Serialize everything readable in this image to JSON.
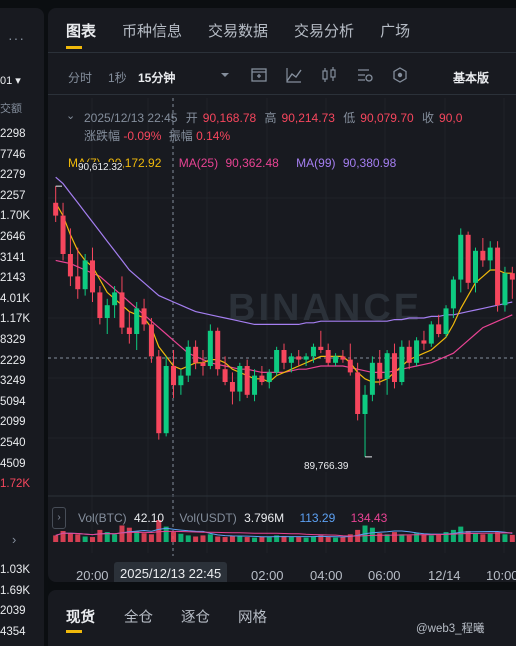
{
  "left_strip": {
    "menu_icon": "more-horizontal-icon",
    "selector": "01 ▾",
    "header": "交额",
    "values": [
      "2298",
      "7746",
      "2279",
      "2257",
      "1.70K",
      "2646",
      "3141",
      "2143",
      "4.01K",
      "1.17K",
      "8329",
      "2229",
      "3249",
      "5094",
      "2099",
      "2540",
      "4509",
      "1.72K"
    ],
    "lower_values": [
      "1.03K",
      "1.69K",
      "2039",
      "4354"
    ],
    "value_colors": [
      "#eaecef",
      "#eaecef",
      "#eaecef",
      "#eaecef",
      "#eaecef",
      "#eaecef",
      "#eaecef",
      "#eaecef",
      "#eaecef",
      "#eaecef",
      "#eaecef",
      "#eaecef",
      "#eaecef",
      "#eaecef",
      "#eaecef",
      "#eaecef",
      "#eaecef",
      "#f6465d"
    ]
  },
  "tabs": [
    "图表",
    "币种信息",
    "交易数据",
    "交易分析",
    "广场"
  ],
  "toolbar": {
    "time": "分时",
    "one_sec": "1秒",
    "interval": "15分钟",
    "basic": "基本版",
    "icons": [
      "dropdown-caret-icon",
      "indicator-add-icon",
      "chart-line-icon",
      "candle-style-icon",
      "magic-indicator-icon",
      "settings-hex-icon",
      "more-vertical-icon"
    ]
  },
  "ohlc": {
    "datetime": "2025/12/13 22:45",
    "open_label": "开",
    "open": "90,168.78",
    "high_label": "高",
    "high": "90,214.73",
    "low_label": "低",
    "low": "90,079.70",
    "close_label": "收",
    "close": "90,0",
    "change_label": "涨跌幅",
    "change": "-0.09%",
    "amplitude_label": "振幅",
    "amplitude": "0.14%"
  },
  "ma": {
    "ma7_label": "MA(7)",
    "ma7": "90,172.92",
    "ma25_label": "MA(25)",
    "ma25": "90,362.48",
    "ma99_label": "MA(99)",
    "ma99": "90,380.98"
  },
  "price_labels": {
    "high": "90,612.32",
    "low": "89,766.39"
  },
  "watermark_logo": "BINANCE",
  "volume": {
    "btc_label": "Vol(BTC)",
    "btc": "42.10",
    "usdt_label": "Vol(USDT)",
    "usdt": "3.796M",
    "ma1": "113.29",
    "ma2": "134.43"
  },
  "time_axis": [
    "20:00",
    "02:00",
    "04:00",
    "06:00",
    "12/14",
    "10:00"
  ],
  "crosshair_time": "2025/12/13 22:45",
  "bottom_tabs": [
    "现货",
    "全仓",
    "逐仓",
    "网格"
  ],
  "footer_watermark": "@web3_程曦",
  "colors": {
    "up": "#0ecb81",
    "down": "#f6465d",
    "ma7": "#f0b90b",
    "ma25": "#e84393",
    "ma99": "#a47ef0",
    "accent": "#f0b90b"
  },
  "chart_data": {
    "type": "candlestick",
    "interval": "15分钟",
    "y_range": [
      89700,
      90700
    ],
    "candles": [
      {
        "o": 90560,
        "h": 90612,
        "l": 90500,
        "c": 90520
      },
      {
        "o": 90520,
        "h": 90560,
        "l": 90380,
        "c": 90400
      },
      {
        "o": 90400,
        "h": 90480,
        "l": 90300,
        "c": 90330
      },
      {
        "o": 90330,
        "h": 90420,
        "l": 90260,
        "c": 90290
      },
      {
        "o": 90290,
        "h": 90400,
        "l": 90270,
        "c": 90380
      },
      {
        "o": 90380,
        "h": 90420,
        "l": 90250,
        "c": 90280
      },
      {
        "o": 90280,
        "h": 90300,
        "l": 90180,
        "c": 90200
      },
      {
        "o": 90200,
        "h": 90260,
        "l": 90150,
        "c": 90240
      },
      {
        "o": 90240,
        "h": 90300,
        "l": 90200,
        "c": 90280
      },
      {
        "o": 90280,
        "h": 90330,
        "l": 90150,
        "c": 90170
      },
      {
        "o": 90170,
        "h": 90220,
        "l": 90120,
        "c": 90150
      },
      {
        "o": 90150,
        "h": 90250,
        "l": 90100,
        "c": 90230
      },
      {
        "o": 90230,
        "h": 90260,
        "l": 90160,
        "c": 90180
      },
      {
        "o": 90180,
        "h": 90200,
        "l": 90060,
        "c": 90080
      },
      {
        "o": 90080,
        "h": 90100,
        "l": 89820,
        "c": 89840
      },
      {
        "o": 89840,
        "h": 90080,
        "l": 89830,
        "c": 90050
      },
      {
        "o": 90050,
        "h": 90100,
        "l": 89950,
        "c": 89990
      },
      {
        "o": 89990,
        "h": 90040,
        "l": 89960,
        "c": 90020
      },
      {
        "o": 90020,
        "h": 90130,
        "l": 90000,
        "c": 90110
      },
      {
        "o": 90110,
        "h": 90130,
        "l": 90040,
        "c": 90060
      },
      {
        "o": 90060,
        "h": 90100,
        "l": 90020,
        "c": 90050
      },
      {
        "o": 90050,
        "h": 90180,
        "l": 90040,
        "c": 90160
      },
      {
        "o": 90160,
        "h": 90170,
        "l": 90020,
        "c": 90040
      },
      {
        "o": 90040,
        "h": 90080,
        "l": 89990,
        "c": 90000
      },
      {
        "o": 90000,
        "h": 90030,
        "l": 89930,
        "c": 89970
      },
      {
        "o": 89970,
        "h": 90060,
        "l": 89940,
        "c": 90050
      },
      {
        "o": 90050,
        "h": 90070,
        "l": 89950,
        "c": 89960
      },
      {
        "o": 89960,
        "h": 90040,
        "l": 89940,
        "c": 90020
      },
      {
        "o": 90020,
        "h": 90050,
        "l": 89990,
        "c": 90000
      },
      {
        "o": 90000,
        "h": 90040,
        "l": 89980,
        "c": 90030
      },
      {
        "o": 90030,
        "h": 90110,
        "l": 90020,
        "c": 90100
      },
      {
        "o": 90100,
        "h": 90120,
        "l": 90040,
        "c": 90060
      },
      {
        "o": 90060,
        "h": 90090,
        "l": 90030,
        "c": 90080
      },
      {
        "o": 90080,
        "h": 90100,
        "l": 90050,
        "c": 90070
      },
      {
        "o": 90070,
        "h": 90090,
        "l": 90050,
        "c": 90080
      },
      {
        "o": 90080,
        "h": 90120,
        "l": 90060,
        "c": 90110
      },
      {
        "o": 90110,
        "h": 90160,
        "l": 90090,
        "c": 90100
      },
      {
        "o": 90100,
        "h": 90120,
        "l": 90050,
        "c": 90060
      },
      {
        "o": 90060,
        "h": 90090,
        "l": 90050,
        "c": 90080
      },
      {
        "o": 90080,
        "h": 90100,
        "l": 90060,
        "c": 90070
      },
      {
        "o": 90070,
        "h": 90120,
        "l": 90020,
        "c": 90030
      },
      {
        "o": 90030,
        "h": 90060,
        "l": 89880,
        "c": 89900
      },
      {
        "o": 89900,
        "h": 89990,
        "l": 89766,
        "c": 89960
      },
      {
        "o": 89960,
        "h": 90080,
        "l": 89940,
        "c": 90060
      },
      {
        "o": 90060,
        "h": 90100,
        "l": 89990,
        "c": 90010
      },
      {
        "o": 90010,
        "h": 90100,
        "l": 89960,
        "c": 90090
      },
      {
        "o": 90090,
        "h": 90120,
        "l": 89980,
        "c": 90000
      },
      {
        "o": 90000,
        "h": 90130,
        "l": 89990,
        "c": 90110
      },
      {
        "o": 90110,
        "h": 90130,
        "l": 90040,
        "c": 90060
      },
      {
        "o": 90060,
        "h": 90140,
        "l": 90050,
        "c": 90130
      },
      {
        "o": 90130,
        "h": 90160,
        "l": 90100,
        "c": 90120
      },
      {
        "o": 90120,
        "h": 90190,
        "l": 90110,
        "c": 90180
      },
      {
        "o": 90180,
        "h": 90210,
        "l": 90140,
        "c": 90150
      },
      {
        "o": 90150,
        "h": 90240,
        "l": 90140,
        "c": 90230
      },
      {
        "o": 90230,
        "h": 90330,
        "l": 90200,
        "c": 90320
      },
      {
        "o": 90320,
        "h": 90480,
        "l": 90280,
        "c": 90460
      },
      {
        "o": 90460,
        "h": 90470,
        "l": 90290,
        "c": 90310
      },
      {
        "o": 90310,
        "h": 90420,
        "l": 90280,
        "c": 90410
      },
      {
        "o": 90410,
        "h": 90450,
        "l": 90360,
        "c": 90380
      },
      {
        "o": 90380,
        "h": 90440,
        "l": 90350,
        "c": 90420
      },
      {
        "o": 90420,
        "h": 90440,
        "l": 90220,
        "c": 90240
      },
      {
        "o": 90240,
        "h": 90360,
        "l": 90220,
        "c": 90340
      },
      {
        "o": 90340,
        "h": 90360,
        "l": 90260,
        "c": 90320
      }
    ],
    "ma7": [
      90560,
      90520,
      90460,
      90410,
      90380,
      90360,
      90320,
      90280,
      90260,
      90240,
      90220,
      90210,
      90200,
      90170,
      90110,
      90080,
      90050,
      90040,
      90050,
      90060,
      90060,
      90070,
      90070,
      90060,
      90040,
      90030,
      90020,
      90010,
      90010,
      90000,
      90020,
      90030,
      90040,
      90050,
      90060,
      90070,
      90080,
      90080,
      90080,
      90080,
      90060,
      90030,
      90010,
      90000,
      90000,
      90010,
      90030,
      90050,
      90070,
      90080,
      90090,
      90100,
      90120,
      90140,
      90180,
      90230,
      90270,
      90310,
      90330,
      90350,
      90350,
      90340,
      90340
    ],
    "ma25": [
      90380,
      90375,
      90370,
      90360,
      90350,
      90340,
      90330,
      90310,
      90290,
      90270,
      90250,
      90230,
      90210,
      90190,
      90170,
      90150,
      90130,
      90110,
      90090,
      90080,
      90070,
      90060,
      90055,
      90050,
      90045,
      90040,
      90040,
      90035,
      90030,
      90030,
      90030,
      90030,
      90035,
      90040,
      90040,
      90045,
      90050,
      90050,
      90050,
      90050,
      90045,
      90040,
      90035,
      90030,
      90030,
      90030,
      90035,
      90040,
      90045,
      90050,
      90055,
      90060,
      90070,
      90080,
      90090,
      90110,
      90130,
      90150,
      90170,
      90180,
      90190,
      90200,
      90210
    ],
    "ma99": [
      90640,
      90620,
      90590,
      90560,
      90530,
      90500,
      90470,
      90440,
      90410,
      90380,
      90350,
      90330,
      90310,
      90290,
      90270,
      90260,
      90250,
      90240,
      90230,
      90220,
      90215,
      90210,
      90205,
      90200,
      90195,
      90190,
      90185,
      90180,
      90180,
      90180,
      90180,
      90180,
      90180,
      90180,
      90185,
      90185,
      90190,
      90190,
      90190,
      90190,
      90190,
      90190,
      90190,
      90190,
      90190,
      90190,
      90195,
      90195,
      90200,
      90200,
      90200,
      90205,
      90205,
      90210,
      90210,
      90215,
      90220,
      90225,
      90230,
      90235,
      90240,
      90245,
      90250
    ],
    "volume_series": [
      12,
      20,
      16,
      14,
      10,
      9,
      22,
      18,
      14,
      30,
      26,
      20,
      16,
      14,
      40,
      28,
      18,
      15,
      12,
      10,
      12,
      14,
      10,
      9,
      11,
      10,
      9,
      8,
      10,
      9,
      12,
      11,
      10,
      9,
      8,
      10,
      12,
      9,
      8,
      9,
      14,
      22,
      30,
      26,
      16,
      14,
      18,
      14,
      12,
      16,
      14,
      12,
      14,
      18,
      22,
      28,
      20,
      16,
      14,
      15,
      18,
      14,
      13
    ]
  }
}
